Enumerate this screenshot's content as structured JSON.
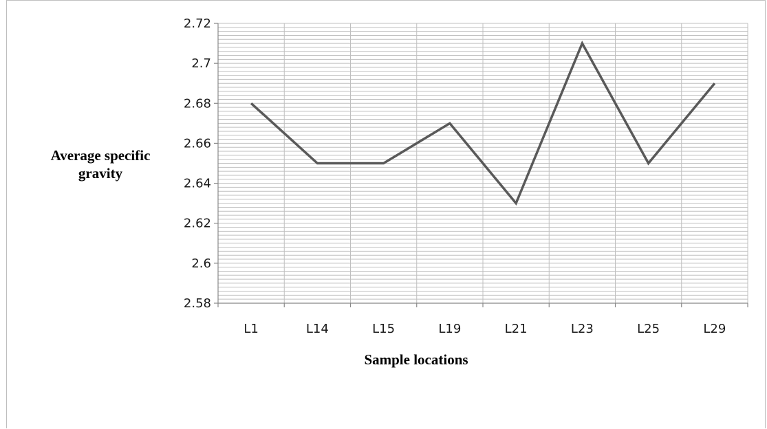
{
  "chart_data": {
    "type": "line",
    "title": "",
    "xlabel": "Sample locations",
    "ylabel_lines": [
      "Average specific",
      "gravity"
    ],
    "categories": [
      "L1",
      "L14",
      "L15",
      "L19",
      "L21",
      "L23",
      "L25",
      "L29"
    ],
    "series": [
      {
        "values": [
          2.68,
          2.65,
          2.65,
          2.67,
          2.63,
          2.71,
          2.65,
          2.69
        ],
        "color": "#595959"
      }
    ],
    "ylim": [
      2.58,
      2.72
    ],
    "major_ticks": [
      "2.58",
      "2.6",
      "2.62",
      "2.64",
      "2.66",
      "2.68",
      "2.7",
      "2.72"
    ],
    "minor_step": 0.002,
    "grid": true,
    "grid_color": "#bfbfbf",
    "axis_color": "#888888",
    "legend": "none"
  }
}
